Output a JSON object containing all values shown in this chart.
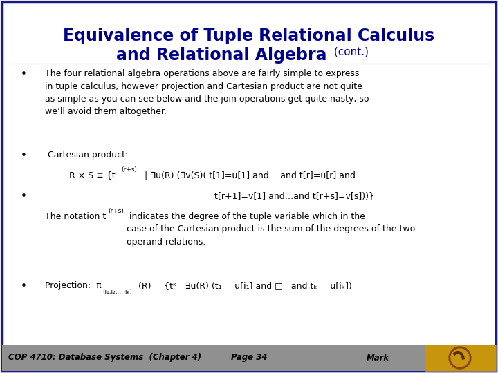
{
  "bg_color": "#e8e8e8",
  "slide_bg": "#ffffff",
  "title_line1": "Equivalence of Tuple Relational Calculus",
  "title_line2_main": "and Relational Algebra",
  "title_line2_small": " (cont.)",
  "title_color": "#00008B",
  "body_color": "#000000",
  "footer_bg": "#909090",
  "footer_text": "COP 4710: Database Systems  (Chapter 4)",
  "footer_page": "Page 34",
  "footer_right": "Mark",
  "bullet1": "The four relational algebra operations above are fairly simple to express\nin tuple calculus, however projection and Cartesian product are not quite\nas simple as you can see below and the join operations get quite nasty, so\nwe’ll avoid them altogether.",
  "bullet2_label": " Cartesian product:",
  "formula1a": "R × S ≡ {t",
  "formula1_sup": "(r+s)",
  "formula1b": " | ∃u(R) (∃v(S)( t[1]=u[1] and …and t[r]=u[r] and",
  "formula2": "t[r+1]=v[1] and…and t[r+s]=v[s]))}",
  "notation_pre": "The notation t",
  "notation_sup": "(r+s)",
  "notation_post": " indicates the degree of the tuple variable which in the\ncase of the Cartesian product is the sum of the degrees of the two\noperand relations.",
  "bullet4_pre": "Projection:  π",
  "bullet4_sub": "(i₁,i₂,...,iₖ)",
  "bullet4_post": "(R) = {tᵏ | ∃u(R) (t₁ = u[i₁] and □   and tₖ = u[iₖ])",
  "border_color": "#1a1a8c"
}
